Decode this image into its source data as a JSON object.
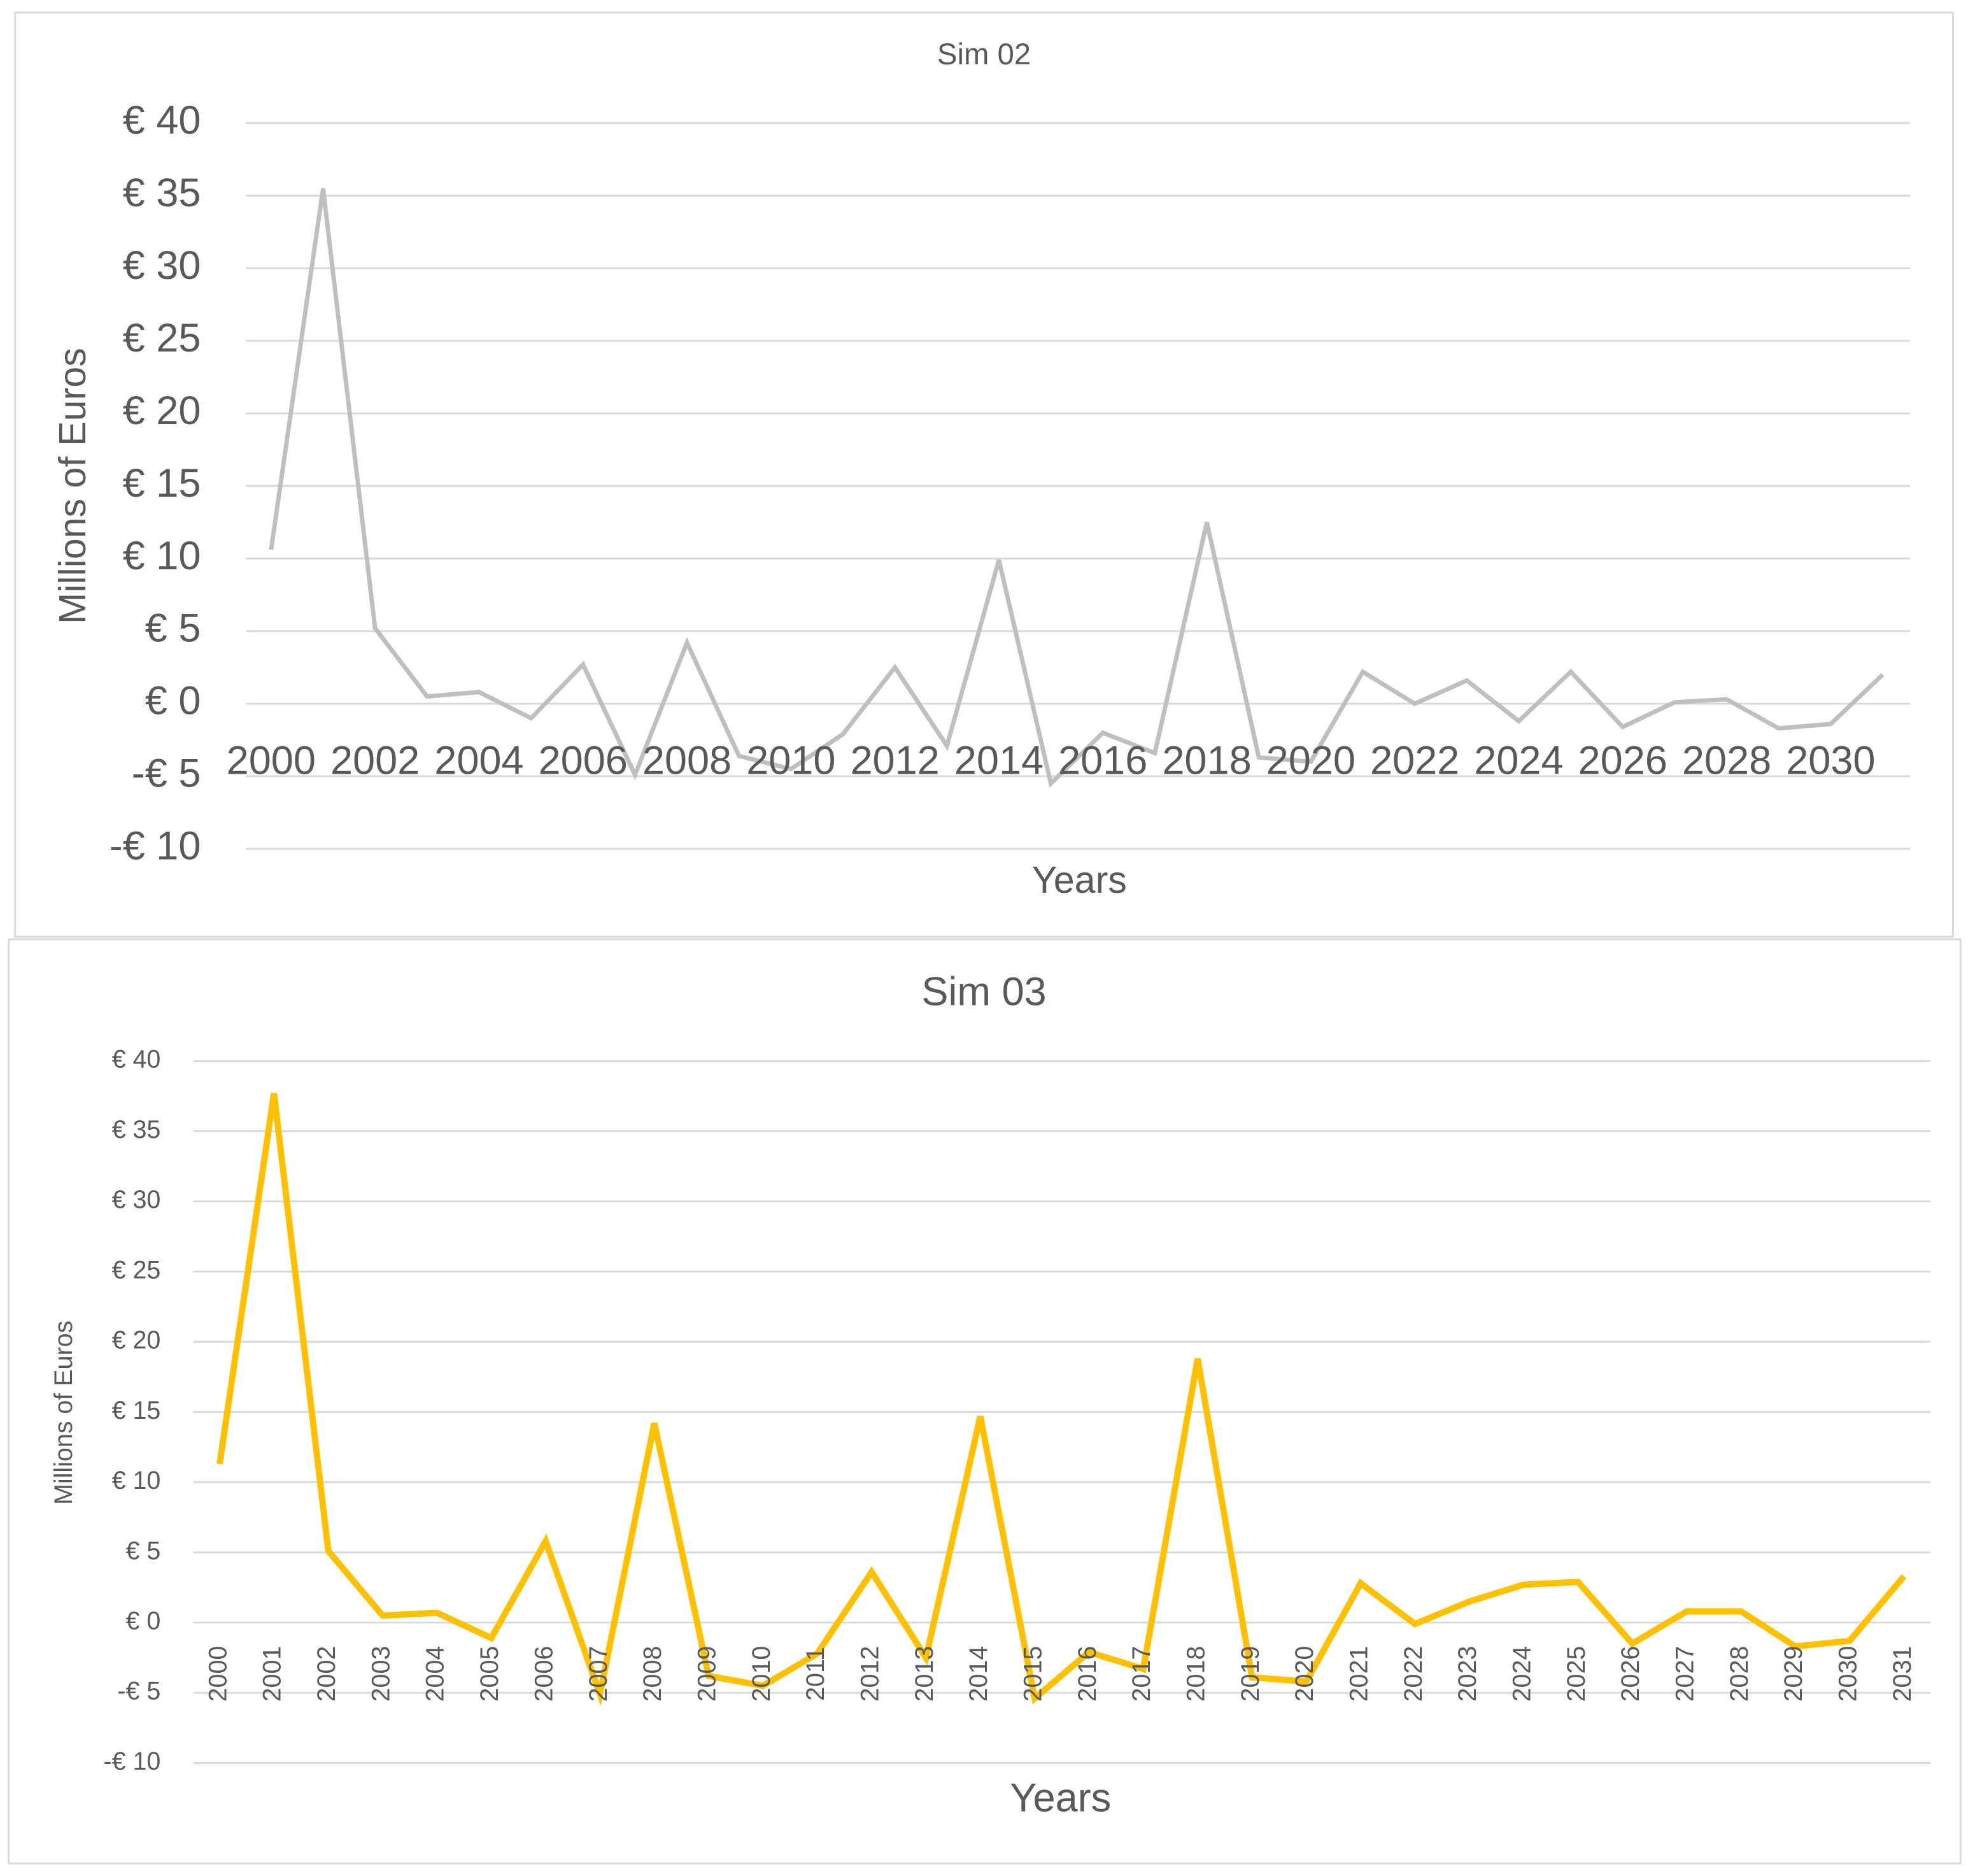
{
  "chart_data": [
    {
      "type": "line",
      "title": "Sim 02",
      "x_label": "Years",
      "y_label": "Millions of Euros",
      "categories": [
        2000,
        null,
        2002,
        null,
        2004,
        null,
        2006,
        null,
        2008,
        null,
        2010,
        null,
        2012,
        null,
        2014,
        null,
        2016,
        null,
        2018,
        null,
        2020,
        null,
        2022,
        null,
        2024,
        null,
        2026,
        null,
        2028,
        null,
        2030,
        null
      ],
      "values": [
        10.6,
        35.5,
        5.2,
        0.5,
        0.8,
        -1.0,
        2.7,
        -4.9,
        4.2,
        -3.6,
        -4.5,
        -2.1,
        2.5,
        -2.9,
        9.9,
        -5.5,
        -2.0,
        -3.4,
        12.5,
        -3.7,
        -4.0,
        2.2,
        0.0,
        1.6,
        -1.2,
        2.2,
        -1.6,
        0.1,
        0.3,
        -1.7,
        -1.4,
        2.0
      ],
      "color": "#bfbfbf",
      "ylim": [
        -10,
        40
      ],
      "yticks": [
        {
          "value": -10,
          "label": "-€ 10"
        },
        {
          "value": -5,
          "label": "-€ 5"
        },
        {
          "value": 0,
          "label": "€ 0"
        },
        {
          "value": 5,
          "label": "€ 5"
        },
        {
          "value": 10,
          "label": "€ 10"
        },
        {
          "value": 15,
          "label": "€ 15"
        },
        {
          "value": 20,
          "label": "€ 20"
        },
        {
          "value": 25,
          "label": "€ 25"
        },
        {
          "value": 30,
          "label": "€ 30"
        },
        {
          "value": 35,
          "label": "€ 35"
        },
        {
          "value": 40,
          "label": "€ 40"
        }
      ],
      "grid": true
    },
    {
      "type": "line",
      "title": "Sim 03",
      "x_label": "Years",
      "y_label": "Millions of Euros",
      "categories": [
        2000,
        2001,
        2002,
        2003,
        2004,
        2005,
        2006,
        2007,
        2008,
        2009,
        2010,
        2011,
        2012,
        2013,
        2014,
        2015,
        2016,
        2017,
        2018,
        2019,
        2020,
        2021,
        2022,
        2023,
        2024,
        2025,
        2026,
        2027,
        2028,
        2029,
        2030,
        2031
      ],
      "values": [
        11.3,
        37.7,
        5.1,
        0.5,
        0.7,
        -1.1,
        5.8,
        -5.1,
        14.2,
        -3.8,
        -4.5,
        -2.2,
        3.6,
        -2.5,
        14.7,
        -5.4,
        -2.1,
        -3.3,
        18.8,
        -3.9,
        -4.2,
        2.8,
        -0.1,
        1.5,
        2.7,
        2.9,
        -1.5,
        0.8,
        0.8,
        -1.7,
        -1.3,
        3.3
      ],
      "color": "#ffc000",
      "ylim": [
        -10,
        40
      ],
      "yticks": [
        {
          "value": -10,
          "label": "-€ 10"
        },
        {
          "value": -5,
          "label": "-€ 5"
        },
        {
          "value": 0,
          "label": "€ 0"
        },
        {
          "value": 5,
          "label": "€ 5"
        },
        {
          "value": 10,
          "label": "€ 10"
        },
        {
          "value": 15,
          "label": "€ 15"
        },
        {
          "value": 20,
          "label": "€ 20"
        },
        {
          "value": 25,
          "label": "€ 25"
        },
        {
          "value": 30,
          "label": "€ 30"
        },
        {
          "value": 35,
          "label": "€ 35"
        },
        {
          "value": 40,
          "label": "€ 40"
        }
      ],
      "grid": true
    }
  ]
}
